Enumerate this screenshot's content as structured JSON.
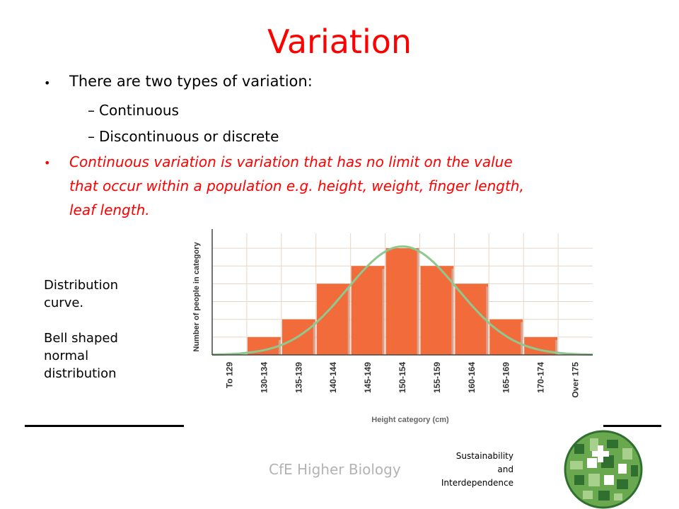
{
  "slide": {
    "title": "Variation",
    "bullet1": "There are two types of variation:",
    "sub_items": [
      "Continuous",
      "Discontinuous or discrete"
    ],
    "bullet2_lines": [
      "Continuous variation is variation that has no limit on the value",
      "that occur within a population e.g. height, weight, finger length,",
      "leaf length."
    ],
    "side_note": [
      "Distribution",
      "curve.",
      "",
      "Bell shaped",
      "normal",
      "distribution"
    ],
    "footer": "CfE Higher Biology",
    "course_lines": [
      "Sustainability",
      "and",
      "Interdependence"
    ],
    "colors": {
      "title": "#ff0000",
      "bar": "#f26b3a",
      "curve": "#8fc88f"
    },
    "logo_icon": "sustainability-globe-logo"
  },
  "chart_data": {
    "type": "bar",
    "categories": [
      "To 129",
      "130-134",
      "135-139",
      "140-144",
      "145-149",
      "150-154",
      "155-159",
      "160-164",
      "165-169",
      "170-174",
      "Over 175"
    ],
    "values": [
      0,
      1,
      2,
      4,
      5,
      6,
      5,
      4,
      2,
      1,
      0
    ],
    "xlabel": "Height category (cm)",
    "ylabel": "Number of people in category",
    "ylim": [
      0,
      6.6
    ],
    "grid": true,
    "overlay": "normal distribution curve"
  }
}
